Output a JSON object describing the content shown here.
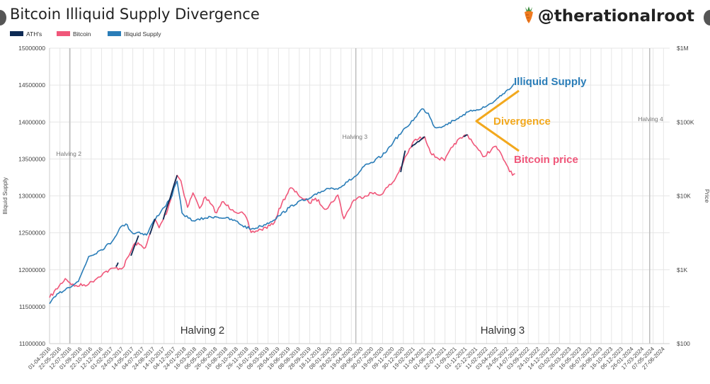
{
  "header": {
    "title": "Bitcoin Illiquid Supply Divergence",
    "handle": "@therationalroot",
    "handle_icon": "carrot-icon"
  },
  "colors": {
    "ath": "#0d2a54",
    "bitcoin": "#f0577a",
    "illiquid": "#2a7db8",
    "divergence": "#f2a81d",
    "grid": "#e6e6e6",
    "halving_line": "#bdbdbd"
  },
  "chart_data": {
    "type": "line",
    "title": "Bitcoin Illiquid Supply Divergence",
    "legend": [
      "ATH's",
      "Bitcoin",
      "Illiquid Supply"
    ],
    "legend_position": "top-left",
    "ylabel": "Illiquid Supply",
    "y2label": "Price",
    "ylim": [
      11000000,
      15000000
    ],
    "y_ticks": [
      "15000000",
      "14500000",
      "14000000",
      "13500000",
      "13000000",
      "12500000",
      "12000000",
      "11500000",
      "11000000"
    ],
    "y2_scale": "log",
    "y2lim": [
      100,
      1000000
    ],
    "y2_ticks": [
      "$1M",
      "$100K",
      "$10K",
      "$1K",
      "$100"
    ],
    "xlim": [
      "2016-04-01",
      "2024-07-27"
    ],
    "x_ticks": [
      "01-04-2016",
      "22-05-2016",
      "12-07-2016",
      "01-09-2016",
      "22-10-2016",
      "12-12-2016",
      "01-02-2017",
      "24-03-2017",
      "14-05-2017",
      "04-07-2017",
      "24-08-2017",
      "14-10-2017",
      "04-12-2017",
      "24-01-2018",
      "16-03-2018",
      "06-05-2018",
      "26-06-2018",
      "16-08-2018",
      "06-10-2018",
      "26-11-2018",
      "16-01-2019",
      "08-03-2019",
      "28-04-2019",
      "18-06-2019",
      "08-08-2019",
      "28-09-2019",
      "18-11-2019",
      "08-01-2020",
      "28-02-2020",
      "19-04-2020",
      "09-06-2020",
      "30-07-2020",
      "19-09-2020",
      "09-11-2020",
      "30-12-2020",
      "19-02-2021",
      "11-04-2021",
      "01-06-2021",
      "22-07-2021",
      "11-09-2021",
      "01-11-2021",
      "22-12-2021",
      "11-02-2022",
      "03-04-2022",
      "24-05-2022",
      "14-07-2022",
      "03-09-2022",
      "24-10-2022",
      "14-12-2022",
      "03-02-2023",
      "26-03-2023",
      "16-05-2023",
      "06-07-2023",
      "26-08-2023",
      "16-10-2023",
      "06-12-2023",
      "26-01-2024",
      "17-03-2024",
      "07-05-2024",
      "27-06-2024"
    ],
    "grid": true,
    "halvings": [
      {
        "label": "Halving 2",
        "date": "2016-07-09"
      },
      {
        "label": "Halving 3",
        "date": "2020-05-11"
      },
      {
        "label": "Halving 4",
        "date": "2024-04-20"
      }
    ],
    "bottom_labels": [
      "Halving 2",
      "Halving 3"
    ],
    "series": [
      {
        "name": "Illiquid Supply",
        "axis": "left",
        "points": [
          [
            "2016-04-01",
            11540000
          ],
          [
            "2016-05-15",
            11680000
          ],
          [
            "2016-07-01",
            11760000
          ],
          [
            "2016-08-20",
            11840000
          ],
          [
            "2016-10-10",
            12180000
          ],
          [
            "2016-12-10",
            12270000
          ],
          [
            "2017-02-01",
            12380000
          ],
          [
            "2017-03-10",
            12560000
          ],
          [
            "2017-04-10",
            12620000
          ],
          [
            "2017-05-15",
            12490000
          ],
          [
            "2017-06-15",
            12510000
          ],
          [
            "2017-07-20",
            12470000
          ],
          [
            "2017-08-20",
            12640000
          ],
          [
            "2017-10-01",
            12800000
          ],
          [
            "2017-11-15",
            12960000
          ],
          [
            "2017-12-17",
            13200000
          ],
          [
            "2018-01-10",
            12770000
          ],
          [
            "2018-02-10",
            12700000
          ],
          [
            "2018-03-15",
            12660000
          ],
          [
            "2018-05-01",
            12700000
          ],
          [
            "2018-06-20",
            12720000
          ],
          [
            "2018-08-10",
            12700000
          ],
          [
            "2018-10-01",
            12660000
          ],
          [
            "2018-11-01",
            12600000
          ],
          [
            "2018-12-15",
            12550000
          ],
          [
            "2019-02-01",
            12590000
          ],
          [
            "2019-03-20",
            12650000
          ],
          [
            "2019-05-01",
            12730000
          ],
          [
            "2019-06-20",
            12840000
          ],
          [
            "2019-08-01",
            12920000
          ],
          [
            "2019-09-20",
            12950000
          ],
          [
            "2019-11-01",
            13020000
          ],
          [
            "2019-12-20",
            13100000
          ],
          [
            "2020-02-20",
            13110000
          ],
          [
            "2020-04-01",
            13190000
          ],
          [
            "2020-05-20",
            13290000
          ],
          [
            "2020-06-20",
            13400000
          ],
          [
            "2020-08-01",
            13450000
          ],
          [
            "2020-10-01",
            13580000
          ],
          [
            "2020-11-15",
            13750000
          ],
          [
            "2021-01-15",
            13930000
          ],
          [
            "2021-02-25",
            14060000
          ],
          [
            "2021-04-01",
            14180000
          ],
          [
            "2021-05-01",
            14120000
          ],
          [
            "2021-06-01",
            13930000
          ],
          [
            "2021-07-20",
            13950000
          ],
          [
            "2021-09-01",
            14020000
          ],
          [
            "2021-10-20",
            14100000
          ],
          [
            "2021-12-10",
            14160000
          ],
          [
            "2022-02-01",
            14200000
          ],
          [
            "2022-03-20",
            14280000
          ],
          [
            "2022-05-01",
            14380000
          ],
          [
            "2022-06-10",
            14460000
          ],
          [
            "2022-06-25",
            14520000
          ]
        ]
      },
      {
        "name": "Bitcoin",
        "axis": "right",
        "points": [
          [
            "2016-04-01",
            420
          ],
          [
            "2016-06-17",
            760
          ],
          [
            "2016-08-01",
            600
          ],
          [
            "2016-10-10",
            640
          ],
          [
            "2016-12-20",
            900
          ],
          [
            "2017-02-10",
            1050
          ],
          [
            "2017-03-25",
            1050
          ],
          [
            "2017-05-25",
            2300
          ],
          [
            "2017-07-15",
            2000
          ],
          [
            "2017-09-01",
            4800
          ],
          [
            "2017-09-20",
            3700
          ],
          [
            "2017-11-01",
            6500
          ],
          [
            "2017-12-17",
            19000
          ],
          [
            "2018-01-05",
            16000
          ],
          [
            "2018-02-06",
            7000
          ],
          [
            "2018-03-05",
            11000
          ],
          [
            "2018-04-06",
            6800
          ],
          [
            "2018-05-05",
            9700
          ],
          [
            "2018-06-29",
            5900
          ],
          [
            "2018-07-25",
            8300
          ],
          [
            "2018-09-15",
            6500
          ],
          [
            "2018-11-15",
            5500
          ],
          [
            "2018-12-15",
            3200
          ],
          [
            "2019-02-01",
            3500
          ],
          [
            "2019-04-01",
            4100
          ],
          [
            "2019-05-15",
            8000
          ],
          [
            "2019-06-26",
            12900
          ],
          [
            "2019-08-01",
            10500
          ],
          [
            "2019-09-26",
            8000
          ],
          [
            "2019-10-26",
            9300
          ],
          [
            "2019-12-18",
            6600
          ],
          [
            "2020-02-13",
            10300
          ],
          [
            "2020-03-13",
            4900
          ],
          [
            "2020-05-01",
            8800
          ],
          [
            "2020-07-27",
            11000
          ],
          [
            "2020-09-05",
            10200
          ],
          [
            "2020-11-15",
            16000
          ],
          [
            "2020-12-31",
            29000
          ],
          [
            "2021-02-20",
            56000
          ],
          [
            "2021-04-14",
            63000
          ],
          [
            "2021-05-19",
            36000
          ],
          [
            "2021-07-20",
            30000
          ],
          [
            "2021-09-06",
            51000
          ],
          [
            "2021-10-20",
            64000
          ],
          [
            "2021-11-10",
            67000
          ],
          [
            "2021-12-20",
            47000
          ],
          [
            "2022-01-24",
            34000
          ],
          [
            "2022-03-29",
            47000
          ],
          [
            "2022-05-12",
            29000
          ],
          [
            "2022-06-18",
            19000
          ],
          [
            "2022-06-30",
            20000
          ]
        ]
      },
      {
        "name": "ATH's",
        "axis": "right",
        "segments": [
          [
            [
              "2017-02-20",
              1100
            ],
            [
              "2017-03-03",
              1250
            ]
          ],
          [
            [
              "2017-05-05",
              1550
            ],
            [
              "2017-06-11",
              2900
            ]
          ],
          [
            [
              "2017-08-05",
              3000
            ],
            [
              "2017-09-01",
              4900
            ]
          ],
          [
            [
              "2017-10-10",
              4800
            ],
            [
              "2017-12-17",
              19000
            ]
          ],
          [
            [
              "2020-12-17",
              21000
            ],
            [
              "2021-01-08",
              41000
            ]
          ],
          [
            [
              "2021-02-08",
              46000
            ],
            [
              "2021-04-14",
              63000
            ]
          ],
          [
            [
              "2021-10-20",
              64000
            ],
            [
              "2021-11-10",
              67000
            ]
          ]
        ]
      }
    ],
    "annotations": [
      {
        "text": "Illiquid Supply",
        "color": "#2a7db8"
      },
      {
        "text": "Divergence",
        "color": "#f2a81d"
      },
      {
        "text": "Bitcoin price",
        "color": "#f0577a"
      }
    ]
  }
}
